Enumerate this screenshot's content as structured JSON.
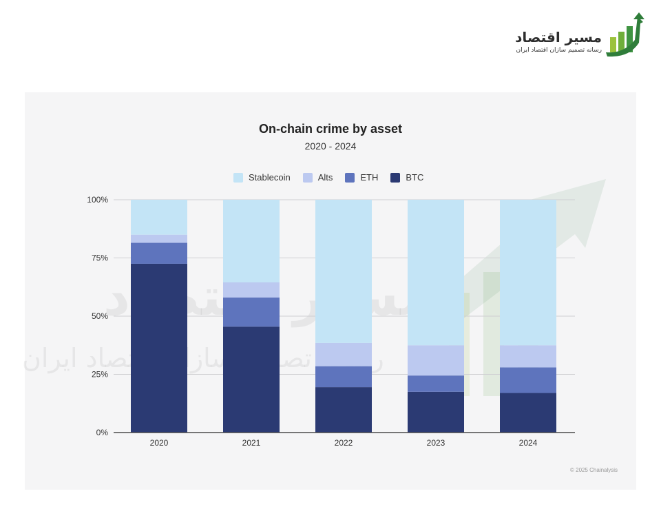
{
  "logo": {
    "title": "مسیر اقتصاد",
    "subtitle": "رسانه تصمیم سازان اقتصاد ایران"
  },
  "chart_data": {
    "type": "bar",
    "stacked": true,
    "title": "On-chain crime by asset",
    "subtitle": "2020 - 2024",
    "categories": [
      "2020",
      "2021",
      "2022",
      "2023",
      "2024"
    ],
    "ylim": [
      0,
      100
    ],
    "yticks": [
      "0%",
      "25%",
      "50%",
      "75%",
      "100%"
    ],
    "ytick_values": [
      0,
      25,
      50,
      75,
      100
    ],
    "grid": true,
    "legend": "top",
    "series": [
      {
        "name": "BTC",
        "color": "#2b3a73",
        "values": [
          72.5,
          45.5,
          19.5,
          17.5,
          17
        ]
      },
      {
        "name": "ETH",
        "color": "#5e74bd",
        "values": [
          9,
          12.5,
          9,
          7,
          11
        ]
      },
      {
        "name": "Alts",
        "color": "#bcc9f0",
        "values": [
          3.5,
          6.5,
          10,
          13,
          9.5
        ]
      },
      {
        "name": "Stablecoin",
        "color": "#c3e4f6",
        "values": [
          15,
          35.5,
          61.5,
          62.5,
          62.5
        ]
      }
    ],
    "legend_order": [
      "Stablecoin",
      "Alts",
      "ETH",
      "BTC"
    ]
  },
  "footer": "© 2025 Chainalysis"
}
